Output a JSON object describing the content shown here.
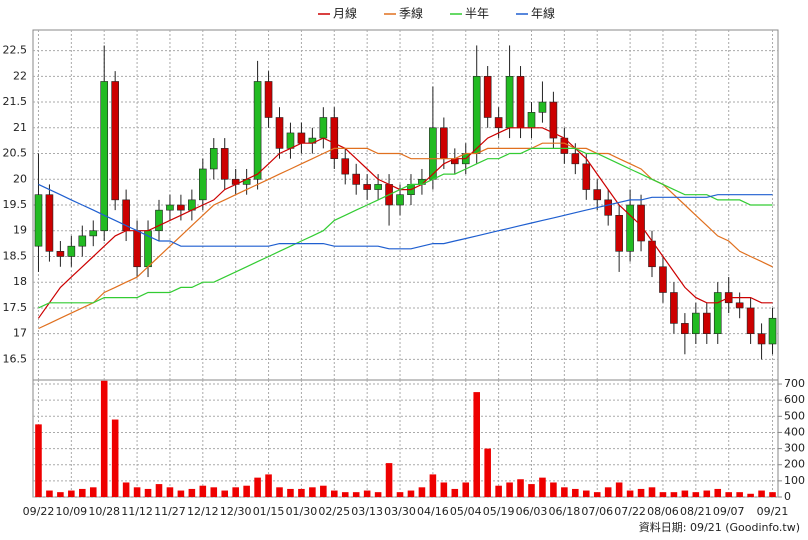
{
  "chart_data": {
    "type": "candlestick",
    "categories": [
      "09/22",
      null,
      null,
      "10/09",
      null,
      null,
      "10/28",
      null,
      null,
      "11/12",
      null,
      null,
      "11/27",
      null,
      null,
      "12/12",
      null,
      null,
      "12/30",
      null,
      null,
      "01/15",
      null,
      null,
      "01/30",
      null,
      null,
      "02/25",
      null,
      null,
      "03/13",
      null,
      null,
      "03/30",
      null,
      null,
      "04/16",
      null,
      null,
      "05/04",
      null,
      null,
      "05/19",
      null,
      null,
      "06/03",
      null,
      null,
      "06/18",
      null,
      null,
      "07/06",
      null,
      null,
      "07/22",
      null,
      null,
      "08/06",
      null,
      null,
      "08/21",
      null,
      null,
      "09/07",
      null,
      null,
      null,
      "09/21"
    ],
    "open": [
      18.7,
      19.7,
      18.6,
      18.5,
      18.7,
      18.9,
      19.0,
      21.9,
      19.6,
      19.0,
      18.3,
      19.0,
      19.4,
      19.5,
      19.4,
      19.6,
      20.2,
      20.6,
      20.0,
      19.9,
      20.0,
      21.9,
      21.2,
      20.6,
      20.9,
      20.7,
      20.8,
      21.2,
      20.4,
      20.1,
      19.9,
      19.8,
      19.9,
      19.5,
      19.7,
      19.9,
      20.0,
      21.0,
      20.4,
      20.3,
      20.5,
      22.0,
      21.2,
      21.0,
      22.0,
      21.0,
      21.3,
      21.5,
      20.8,
      20.5,
      20.3,
      19.8,
      19.6,
      19.3,
      18.6,
      19.5,
      18.8,
      18.3,
      17.8,
      17.2,
      17.0,
      17.4,
      17.0,
      17.8,
      17.6,
      17.5,
      17.0,
      16.8
    ],
    "high": [
      20.5,
      19.9,
      18.8,
      18.9,
      19.1,
      19.2,
      22.6,
      22.1,
      19.8,
      19.2,
      19.2,
      19.6,
      19.7,
      19.7,
      19.8,
      20.4,
      20.8,
      20.8,
      20.2,
      20.2,
      22.3,
      22.1,
      21.4,
      21.1,
      21.1,
      21.0,
      21.4,
      21.4,
      20.6,
      20.3,
      20.1,
      20.1,
      20.1,
      19.9,
      20.1,
      20.2,
      21.8,
      21.2,
      20.6,
      20.7,
      22.6,
      22.2,
      21.4,
      22.6,
      22.2,
      21.5,
      21.9,
      21.7,
      21.0,
      20.7,
      20.5,
      20.0,
      19.8,
      19.5,
      19.8,
      19.7,
      19.0,
      18.5,
      18.0,
      17.4,
      17.6,
      17.6,
      18.0,
      18.1,
      17.8,
      17.7,
      17.2,
      17.5
    ],
    "low": [
      18.2,
      18.4,
      18.3,
      18.3,
      18.5,
      18.7,
      18.8,
      19.4,
      18.8,
      18.1,
      18.1,
      18.8,
      19.2,
      19.2,
      19.2,
      19.4,
      20.0,
      19.8,
      19.7,
      19.7,
      19.8,
      21.0,
      20.4,
      20.4,
      20.5,
      20.5,
      20.6,
      20.2,
      19.9,
      19.7,
      19.6,
      19.6,
      19.1,
      19.3,
      19.5,
      19.7,
      19.8,
      20.2,
      20.1,
      20.1,
      20.3,
      21.0,
      20.8,
      20.8,
      20.8,
      20.8,
      21.1,
      20.6,
      20.3,
      20.1,
      19.6,
      19.4,
      19.1,
      18.2,
      18.4,
      18.6,
      18.1,
      17.6,
      17.0,
      16.6,
      16.8,
      16.8,
      16.8,
      17.4,
      17.3,
      16.8,
      16.5,
      16.6
    ],
    "close": [
      19.7,
      18.6,
      18.5,
      18.7,
      18.9,
      19.0,
      21.9,
      19.6,
      19.0,
      18.3,
      19.0,
      19.4,
      19.5,
      19.4,
      19.6,
      20.2,
      20.6,
      20.0,
      19.9,
      20.0,
      21.9,
      21.2,
      20.6,
      20.9,
      20.7,
      20.8,
      21.2,
      20.4,
      20.1,
      19.9,
      19.8,
      19.9,
      19.5,
      19.7,
      19.9,
      20.0,
      21.0,
      20.4,
      20.3,
      20.5,
      22.0,
      21.2,
      21.0,
      22.0,
      21.0,
      21.3,
      21.5,
      20.8,
      20.5,
      20.3,
      19.8,
      19.6,
      19.3,
      18.6,
      19.5,
      18.8,
      18.3,
      17.8,
      17.2,
      17.0,
      17.4,
      17.0,
      17.8,
      17.6,
      17.5,
      17.0,
      16.8,
      17.3
    ],
    "up_color": "#22bb22",
    "down_color": "#cc0000",
    "ylim": [
      16.1,
      22.9
    ],
    "yticks": [
      16.5,
      17,
      17.5,
      18,
      18.5,
      19,
      19.5,
      20,
      20.5,
      21,
      21.5,
      22,
      22.5
    ],
    "grid": true,
    "series": [
      {
        "name": "月線",
        "color": "#cc0000",
        "values": [
          17.3,
          17.6,
          17.9,
          18.1,
          18.3,
          18.5,
          18.7,
          18.9,
          19.0,
          19.0,
          19.0,
          19.1,
          19.2,
          19.3,
          19.4,
          19.5,
          19.6,
          19.8,
          19.9,
          20.0,
          20.1,
          20.3,
          20.5,
          20.6,
          20.7,
          20.7,
          20.8,
          20.7,
          20.6,
          20.4,
          20.2,
          20.0,
          19.9,
          19.8,
          19.8,
          19.9,
          20.1,
          20.3,
          20.4,
          20.4,
          20.6,
          20.8,
          20.9,
          21.0,
          21.0,
          21.0,
          21.0,
          20.9,
          20.8,
          20.6,
          20.4,
          20.1,
          19.8,
          19.5,
          19.3,
          19.1,
          18.8,
          18.5,
          18.2,
          17.9,
          17.7,
          17.6,
          17.6,
          17.7,
          17.7,
          17.7,
          17.6,
          17.6
        ]
      },
      {
        "name": "季線",
        "color": "#e0701f",
        "values": [
          17.1,
          17.2,
          17.3,
          17.4,
          17.5,
          17.6,
          17.8,
          17.9,
          18.0,
          18.1,
          18.3,
          18.5,
          18.7,
          18.9,
          19.1,
          19.3,
          19.5,
          19.6,
          19.7,
          19.8,
          19.9,
          20.0,
          20.1,
          20.2,
          20.3,
          20.4,
          20.5,
          20.6,
          20.6,
          20.6,
          20.6,
          20.5,
          20.5,
          20.5,
          20.4,
          20.4,
          20.4,
          20.4,
          20.4,
          20.5,
          20.5,
          20.6,
          20.6,
          20.6,
          20.6,
          20.6,
          20.7,
          20.7,
          20.7,
          20.6,
          20.6,
          20.5,
          20.5,
          20.4,
          20.3,
          20.2,
          20.0,
          19.9,
          19.7,
          19.5,
          19.3,
          19.1,
          18.9,
          18.8,
          18.6,
          18.5,
          18.4,
          18.3
        ]
      },
      {
        "name": "半年",
        "color": "#33cc33",
        "values": [
          17.5,
          17.6,
          17.6,
          17.6,
          17.6,
          17.6,
          17.7,
          17.7,
          17.7,
          17.7,
          17.8,
          17.8,
          17.8,
          17.9,
          17.9,
          18.0,
          18.0,
          18.1,
          18.2,
          18.3,
          18.4,
          18.5,
          18.6,
          18.7,
          18.8,
          18.9,
          19.0,
          19.2,
          19.3,
          19.4,
          19.5,
          19.6,
          19.7,
          19.8,
          19.9,
          19.9,
          20.0,
          20.1,
          20.1,
          20.2,
          20.3,
          20.4,
          20.4,
          20.5,
          20.5,
          20.6,
          20.6,
          20.6,
          20.6,
          20.6,
          20.5,
          20.5,
          20.4,
          20.3,
          20.2,
          20.1,
          20.0,
          19.9,
          19.8,
          19.7,
          19.7,
          19.7,
          19.6,
          19.6,
          19.6,
          19.5,
          19.5,
          19.5
        ]
      },
      {
        "name": "年線",
        "color": "#1f5fd0",
        "values": [
          19.9,
          19.8,
          19.7,
          19.6,
          19.5,
          19.4,
          19.3,
          19.2,
          19.1,
          19.0,
          18.9,
          18.8,
          18.8,
          18.7,
          18.7,
          18.7,
          18.7,
          18.7,
          18.7,
          18.7,
          18.7,
          18.7,
          18.75,
          18.75,
          18.75,
          18.75,
          18.75,
          18.7,
          18.7,
          18.7,
          18.7,
          18.7,
          18.65,
          18.65,
          18.65,
          18.7,
          18.75,
          18.75,
          18.8,
          18.85,
          18.9,
          18.95,
          19.0,
          19.05,
          19.1,
          19.15,
          19.2,
          19.25,
          19.3,
          19.35,
          19.4,
          19.45,
          19.5,
          19.55,
          19.6,
          19.6,
          19.65,
          19.65,
          19.65,
          19.65,
          19.65,
          19.65,
          19.7,
          19.7,
          19.7,
          19.7,
          19.7,
          19.7
        ]
      }
    ],
    "volume": {
      "color": "#ee0000",
      "values": [
        450,
        40,
        30,
        40,
        50,
        60,
        720,
        480,
        90,
        60,
        50,
        80,
        60,
        40,
        50,
        70,
        60,
        40,
        60,
        70,
        120,
        140,
        60,
        50,
        50,
        60,
        70,
        40,
        30,
        30,
        40,
        30,
        210,
        30,
        40,
        60,
        140,
        90,
        50,
        90,
        650,
        300,
        70,
        90,
        110,
        80,
        120,
        90,
        60,
        50,
        40,
        30,
        60,
        90,
        40,
        50,
        60,
        30,
        30,
        40,
        30,
        40,
        50,
        30,
        30,
        20,
        40,
        30
      ],
      "ylim": [
        0,
        725
      ],
      "yticks": [
        0,
        100,
        200,
        300,
        400,
        500,
        600,
        700
      ]
    },
    "source_note": "資料日期: 09/21  (Goodinfo.tw)"
  }
}
